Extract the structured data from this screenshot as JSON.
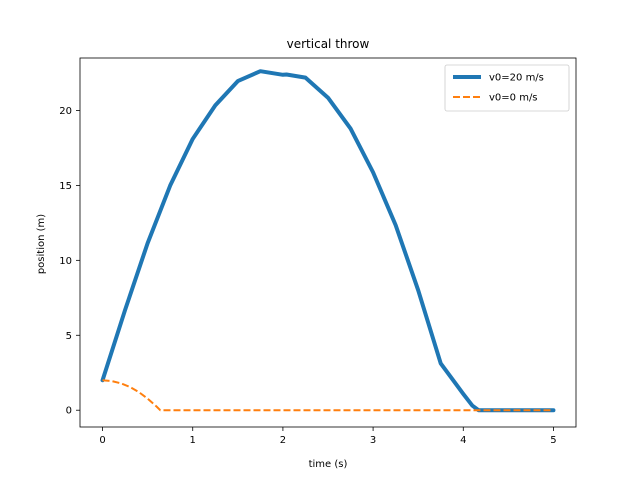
{
  "chart_data": {
    "type": "line",
    "title": "vertical throw",
    "xlabel": "time (s)",
    "ylabel": "position (m)",
    "xlim": [
      -0.25,
      5.25
    ],
    "ylim": [
      -1.12,
      23.5
    ],
    "xticks": [
      0,
      1,
      2,
      3,
      4,
      5
    ],
    "yticks": [
      0,
      5,
      10,
      15,
      20
    ],
    "grid": false,
    "legend": "top-right",
    "series": [
      {
        "name": "v0=20 m/s",
        "color": "#1f77b4",
        "style": "solid",
        "x": [
          0,
          0.25,
          0.5,
          0.75,
          1.0,
          1.25,
          1.5,
          1.75,
          2.0,
          2.04,
          2.25,
          2.5,
          2.75,
          3.0,
          3.25,
          3.5,
          3.75,
          4.0,
          4.1,
          4.17,
          4.2,
          4.5,
          5.0
        ],
        "y": [
          2.0,
          6.69,
          11.15,
          14.99,
          18.1,
          20.34,
          21.96,
          22.62,
          22.38,
          22.4,
          22.19,
          20.85,
          18.79,
          15.87,
          12.35,
          8.01,
          3.12,
          1.09,
          0.31,
          0.0,
          0.0,
          0.0,
          0.0
        ]
      },
      {
        "name": "v0=0 m/s",
        "color": "#ff7f0e",
        "style": "dashed",
        "x": [
          0,
          0.1,
          0.2,
          0.3,
          0.4,
          0.5,
          0.6,
          0.64,
          0.7,
          1.0,
          2.0,
          3.0,
          4.0,
          5.0
        ],
        "y": [
          2.0,
          1.95,
          1.8,
          1.56,
          1.22,
          0.77,
          0.24,
          0.0,
          0.0,
          0.0,
          0.0,
          0.0,
          0.0,
          0.0
        ]
      }
    ]
  }
}
